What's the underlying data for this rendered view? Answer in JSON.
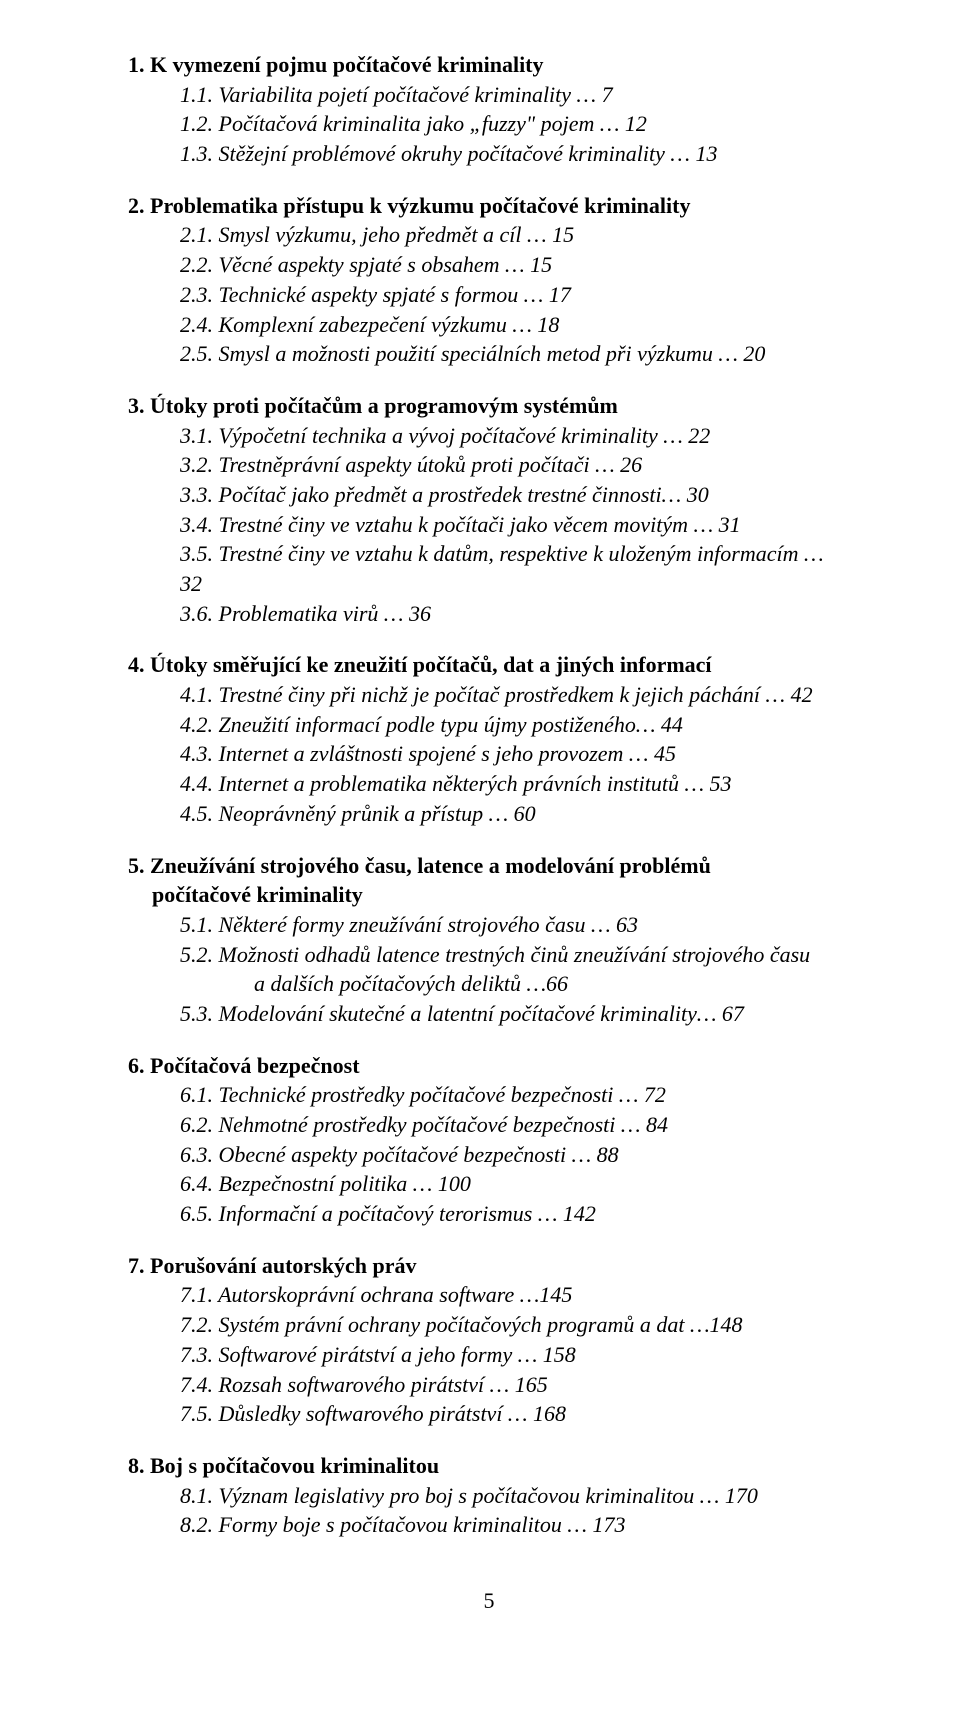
{
  "page_number": "5",
  "sections": [
    {
      "title": "1. K vymezení pojmu počítačové kriminality",
      "title_cont": null,
      "items": [
        "1.1. Variabilita pojetí počítačové kriminality … 7",
        "1.2. Počítačová  kriminalita jako „fuzzy\" pojem … 12",
        "1.3. Stěžejní problémové okruhy počítačové kriminality … 13"
      ]
    },
    {
      "title": "2. Problematika přístupu k výzkumu počítačové kriminality",
      "title_cont": null,
      "items": [
        "2.1. Smysl výzkumu,  jeho předmět a cíl … 15",
        "2.2. Věcné aspekty spjaté s obsahem … 15",
        "2.3. Technické aspekty spjaté s formou … 17",
        "2.4. Komplexní zabezpečení výzkumu …  18",
        "2.5. Smysl a možnosti použití speciálních metod při výzkumu …  20"
      ]
    },
    {
      "title": "3. Útoky proti počítačům a programovým systémům",
      "title_cont": null,
      "items": [
        "3.1. Výpočetní technika a vývoj počítačové kriminality …  22",
        "3.2. Trestněprávní aspekty útoků proti počítači … 26",
        "3.3. Počítač jako předmět a prostředek trestné činnosti…  30",
        "3.4. Trestné činy ve vztahu k počítači jako věcem movitým …  31",
        "3.5. Trestné činy ve vztahu k datům, respektive k uloženým informacím …  32",
        "3.6. Problematika virů …  36"
      ]
    },
    {
      "title": "4. Útoky směřující ke zneužití počítačů, dat a jiných informací",
      "title_cont": null,
      "items": [
        "4.1. Trestné činy při nichž je počítač prostředkem k jejich páchání … 42",
        "4.2. Zneužití informací podle typu újmy postiženého…  44",
        "4.3. Internet a zvláštnosti spojené s jeho provozem …  45",
        "4.4. Internet a problematika některých  právních institutů …  53",
        "4.5. Neoprávněný průnik a  přístup … 60"
      ]
    },
    {
      "title": "5. Zneužívání strojového času, latence a modelování problémů",
      "title_cont": "počítačové kriminality",
      "items": [
        "5.1. Některé formy zneužívání strojového času …  63",
        "5.2. Možnosti odhadů latence trestných činů zneužívání strojového času",
        "___CONT___a dalších počítačových deliktů …66",
        "5.3. Modelování skutečné a latentní počítačové kriminality…  67"
      ]
    },
    {
      "title": "6. Počítačová bezpečnost",
      "title_cont": null,
      "items": [
        "6.1. Technické prostředky počítačové bezpečnosti …  72",
        "6.2. Nehmotné prostředky počítačové bezpečnosti …  84",
        "6.3. Obecné aspekty počítačové bezpečnosti …  88",
        "6.4. Bezpečnostní politika …  100",
        "6.5. Informační a počítačový terorismus …  142"
      ]
    },
    {
      "title": "7. Porušování autorských práv",
      "title_cont": null,
      "items": [
        "7.1. Autorskoprávní ochrana software …145",
        "7.2. Systém právní ochrany počítačových programů a dat …148",
        "7.3. Softwarové pirátství a jeho formy …  158",
        "7.4. Rozsah softwarového pirátství …  165",
        "7.5. Důsledky softwarového pirátství …  168"
      ]
    },
    {
      "title": "8. Boj s počítačovou kriminalitou",
      "title_cont": null,
      "items": [
        "8.1. Význam legislativy pro boj s počítačovou kriminalitou …  170",
        "8.2. Formy boje s počítačovou kriminalitou …  173"
      ]
    }
  ]
}
